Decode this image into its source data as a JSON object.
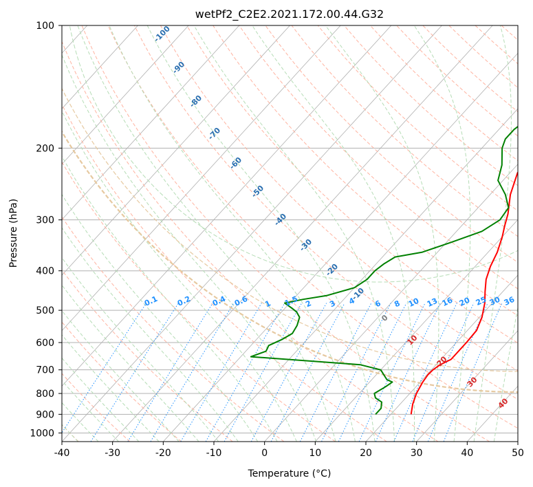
{
  "chart_data": {
    "type": "line",
    "title": "wetPf2_C2E2.2021.172.00.44.G32",
    "xlabel": "Temperature (°C)",
    "ylabel": "Pressure (hPa)",
    "xlim": [
      -40,
      50
    ],
    "ylim": [
      1050,
      100
    ],
    "y_scale": "log",
    "x_ticks": [
      -40,
      -30,
      -20,
      -10,
      0,
      10,
      20,
      30,
      40,
      50
    ],
    "y_ticks": [
      100,
      200,
      300,
      400,
      500,
      600,
      700,
      800,
      900,
      1000
    ],
    "grid": "horizontal",
    "series": [
      {
        "color": "#ff0000",
        "points": [
          [
            24,
            900
          ],
          [
            22.5,
            850
          ],
          [
            21.3,
            800
          ],
          [
            20.5,
            750
          ],
          [
            20.2,
            720
          ],
          [
            20.3,
            700
          ],
          [
            20.8,
            680
          ],
          [
            22,
            660
          ],
          [
            22,
            600
          ],
          [
            21.8,
            560
          ],
          [
            20.5,
            520
          ],
          [
            18.5,
            480
          ],
          [
            16.5,
            450
          ],
          [
            14.5,
            420
          ],
          [
            13,
            390
          ],
          [
            11.8,
            360
          ],
          [
            10,
            330
          ],
          [
            8.5,
            310
          ],
          [
            7,
            290
          ],
          [
            4,
            260
          ],
          [
            1.5,
            230
          ],
          [
            0.5,
            200
          ],
          [
            -0.3,
            180
          ],
          [
            -0.5,
            160
          ],
          [
            -0.2,
            150
          ],
          [
            1,
            143
          ],
          [
            2.5,
            137
          ],
          [
            4,
            130
          ],
          [
            5,
            123
          ],
          [
            5.2,
            117
          ],
          [
            4.5,
            112
          ],
          [
            4.5,
            106
          ],
          [
            5,
            100
          ]
        ]
      },
      {
        "color": "#008000",
        "points": [
          [
            17,
            900
          ],
          [
            17,
            870
          ],
          [
            16,
            840
          ],
          [
            14,
            820
          ],
          [
            13,
            800
          ],
          [
            14,
            770
          ],
          [
            14.5,
            750
          ],
          [
            13,
            740
          ],
          [
            10,
            700
          ],
          [
            5,
            680
          ],
          [
            -18,
            650
          ],
          [
            -17,
            640
          ],
          [
            -16,
            630
          ],
          [
            -16.5,
            610
          ],
          [
            -15,
            590
          ],
          [
            -14,
            570
          ],
          [
            -14.5,
            545
          ],
          [
            -15.5,
            520
          ],
          [
            -17,
            505
          ],
          [
            -18.5,
            495
          ],
          [
            -21,
            480
          ],
          [
            -18,
            470
          ],
          [
            -14,
            460
          ],
          [
            -10,
            440
          ],
          [
            -9,
            420
          ],
          [
            -9,
            400
          ],
          [
            -8.5,
            385
          ],
          [
            -7.5,
            370
          ],
          [
            -3,
            360
          ],
          [
            1,
            340
          ],
          [
            5,
            320
          ],
          [
            6.5,
            300
          ],
          [
            6,
            280
          ],
          [
            3,
            260
          ],
          [
            -1,
            240
          ],
          [
            -3,
            220
          ],
          [
            -6,
            200
          ],
          [
            -7,
            190
          ],
          [
            -7,
            180
          ],
          [
            -6.2,
            170
          ],
          [
            -5.5,
            160
          ],
          [
            -5.5,
            145
          ],
          [
            -6.5,
            130
          ],
          [
            -7.4,
            120
          ],
          [
            -6,
            112
          ],
          [
            -3,
            106
          ],
          [
            0,
            100
          ]
        ]
      }
    ],
    "dry_adiabat_labels": [
      "-100",
      "-90",
      "-80",
      "-70",
      "-60",
      "-50",
      "-40",
      "-30",
      "-20",
      "-10"
    ],
    "mixing_ratio_labels": [
      "0.1",
      "0.2",
      "0.4",
      "0.6",
      "1",
      "1.5",
      "2",
      "3",
      "4",
      "6",
      "8",
      "10",
      "13",
      "16",
      "20",
      "25",
      "30",
      "36"
    ],
    "moist_adiabat_labels": [
      "0",
      "10",
      "20",
      "30",
      "40"
    ],
    "colors": {
      "isotherm": "#b0b0b0",
      "grid": "#b0b0b0",
      "dry_adiabat": "#ffb3a0",
      "moist_adiabat": "#b5dcb5",
      "mixing_ratio": "#1e90ff",
      "dry_label": "#2a6fb0",
      "mix_label": "#1e90ff",
      "moist_label": "#d62728",
      "zero_label": "#808080",
      "outer_curve": "#e6c9a0"
    }
  }
}
